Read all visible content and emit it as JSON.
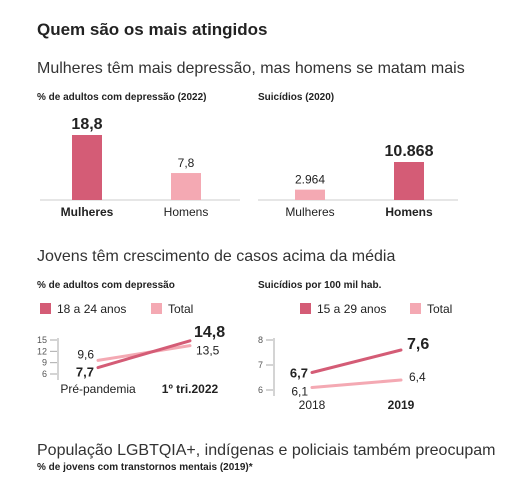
{
  "colors": {
    "dark": "#d45c76",
    "light": "#f4a9b3",
    "axis": "#999999",
    "text": "#222222"
  },
  "header": {
    "title": "Quem são os mais atingidos",
    "subtitle1": "Mulheres têm mais depressão, mas homens se matam mais",
    "subtitle2": "Jovens têm crescimento de casos acima da média",
    "subtitle3": "População LGBTQIA+, indígenas e policiais também preocupam",
    "caption3": "% de jovens com transtornos mentais (2019)*"
  },
  "chart_data": [
    {
      "type": "bar",
      "title": "% de adultos com depressão (2022)",
      "categories": [
        "Mulheres",
        "Homens"
      ],
      "values": [
        18.8,
        7.8
      ],
      "value_labels": [
        "18,8",
        "7,8"
      ],
      "highlight_index": 0,
      "ylim": [
        0,
        18.8
      ]
    },
    {
      "type": "bar",
      "title": "Suicídios (2020)",
      "categories": [
        "Mulheres",
        "Homens"
      ],
      "values": [
        2964,
        10868
      ],
      "value_labels": [
        "2.964",
        "10.868"
      ],
      "highlight_index": 1,
      "ylim": [
        0,
        10868
      ]
    },
    {
      "type": "line",
      "title": "% de adultos com depressão",
      "x": [
        "Pré-pandemia",
        "1º tri.2022"
      ],
      "series": [
        {
          "name": "18 a 24 anos",
          "values": [
            7.7,
            14.8
          ],
          "labels": [
            "7,7",
            "14,8"
          ],
          "color": "#d45c76"
        },
        {
          "name": "Total",
          "values": [
            9.6,
            13.5
          ],
          "labels": [
            "9,6",
            "13,5"
          ],
          "color": "#f4a9b3"
        }
      ],
      "yticks": [
        6,
        9,
        12,
        15
      ],
      "ylim": [
        6,
        15
      ],
      "legend": "top"
    },
    {
      "type": "line",
      "title": "Suicídios por 100 mil hab.",
      "x": [
        "2018",
        "2019"
      ],
      "series": [
        {
          "name": "15 a 29 anos",
          "values": [
            6.7,
            7.6
          ],
          "labels": [
            "6,7",
            "7,6"
          ],
          "color": "#d45c76"
        },
        {
          "name": "Total",
          "values": [
            6.1,
            6.4
          ],
          "labels": [
            "6,1",
            "6,4"
          ],
          "color": "#f4a9b3"
        }
      ],
      "yticks": [
        6,
        7,
        8
      ],
      "ylim": [
        6,
        8
      ],
      "legend": "top"
    }
  ]
}
